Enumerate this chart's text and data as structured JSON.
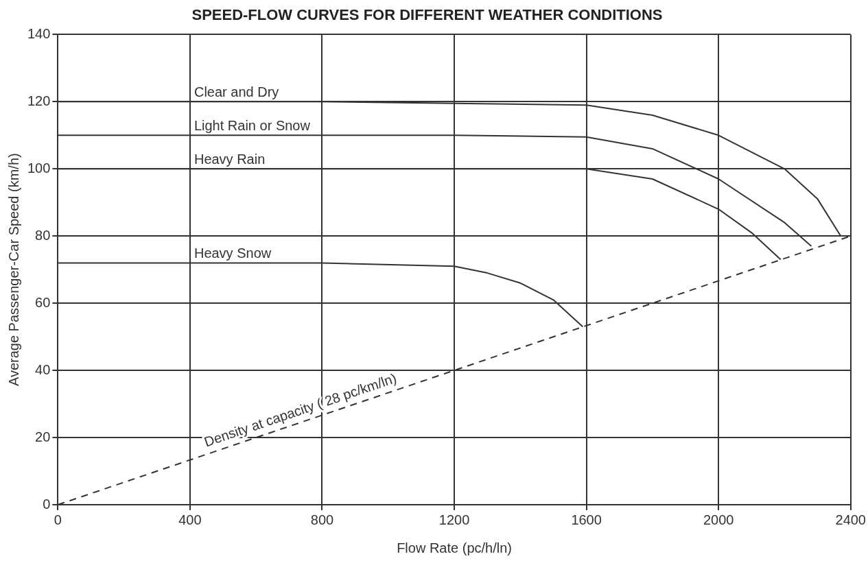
{
  "chart_data": {
    "type": "line",
    "title": "SPEED-FLOW CURVES FOR DIFFERENT WEATHER CONDITIONS",
    "xlabel": "Flow Rate (pc/h/ln)",
    "ylabel": "Average Passenger-Car Speed (km/h)",
    "xlim": [
      0,
      2400
    ],
    "xticks": [
      0,
      400,
      800,
      1200,
      1600,
      2000,
      2400
    ],
    "ylim": [
      0,
      140
    ],
    "yticks": [
      0,
      20,
      40,
      60,
      80,
      100,
      120,
      140
    ],
    "grid": true,
    "legend": false,
    "marker": "none",
    "series": [
      {
        "name": "Clear and Dry",
        "color": "#333333",
        "x": [
          0,
          400,
          800,
          1200,
          1600,
          1800,
          2000,
          2200,
          2300,
          2370
        ],
        "values": [
          120,
          120,
          120,
          119.5,
          119,
          116,
          110,
          100,
          91,
          80
        ]
      },
      {
        "name": "Light Rain or Snow",
        "color": "#333333",
        "x": [
          0,
          400,
          800,
          1200,
          1600,
          1800,
          2000,
          2200,
          2281
        ],
        "values": [
          110,
          110,
          110,
          110,
          109.5,
          106,
          97,
          84,
          77
        ]
      },
      {
        "name": "Heavy Rain",
        "color": "#333333",
        "x": [
          0,
          400,
          800,
          1200,
          1600,
          1800,
          2000,
          2100,
          2188
        ],
        "values": [
          100,
          100,
          100,
          100,
          100,
          97,
          88,
          81,
          73
        ]
      },
      {
        "name": "Heavy Snow",
        "color": "#333333",
        "x": [
          0,
          400,
          800,
          1200,
          1300,
          1400,
          1500,
          1589
        ],
        "values": [
          72,
          72,
          72,
          71,
          69,
          66,
          61,
          53
        ]
      },
      {
        "name": "Density at capacity ( 28 pc/km/ln)",
        "color": "#333333",
        "line_style": "dashed",
        "x": [
          0,
          2400
        ],
        "values": [
          0,
          80
        ]
      }
    ]
  }
}
